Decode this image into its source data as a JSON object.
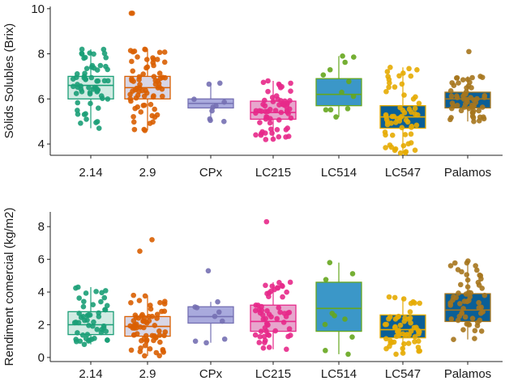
{
  "chart_data": [
    {
      "type": "box",
      "ylabel": "Sòlids Solubles (Brix)",
      "xlabel": "",
      "ylim": [
        3.5,
        10.1
      ],
      "yticks": [
        4,
        6,
        8,
        10
      ],
      "categories": [
        "2.14",
        "2.9",
        "CPx",
        "LC215",
        "LC514",
        "LC547",
        "Palamos"
      ],
      "boxes": [
        {
          "q1": 6.0,
          "median": 6.6,
          "q3": 7.0,
          "whisker_low": 4.7,
          "whisker_high": 8.2,
          "fill": "#d1ebe3",
          "stroke": "#1b9e77",
          "points_color": "#1b9e77",
          "n": 60
        },
        {
          "q1": 6.0,
          "median": 6.5,
          "q3": 7.0,
          "whisker_low": 4.6,
          "whisker_high": 8.2,
          "outliers": [
            9.8,
            9.8
          ],
          "fill": "#d8d6e6",
          "stroke": "#d95f02",
          "points_color": "#d95f02",
          "n": 70
        },
        {
          "q1": 5.6,
          "median": 5.8,
          "q3": 6.0,
          "whisker_low": 5.0,
          "whisker_high": 6.7,
          "fill": "#a9aadd",
          "stroke": "#7570b3",
          "points_color": "#7570b3",
          "n": 8
        },
        {
          "q1": 5.1,
          "median": 5.4,
          "q3": 5.9,
          "whisker_low": 4.2,
          "whisker_high": 6.8,
          "fill": "#e7a6cd",
          "stroke": "#e7298a",
          "points_color": "#e7298a",
          "n": 60
        },
        {
          "q1": 5.7,
          "median": 6.2,
          "q3": 6.9,
          "whisker_low": 5.2,
          "whisker_high": 7.9,
          "fill": "#3b97c8",
          "stroke": "#66a61e",
          "points_color": "#66a61e",
          "n": 10
        },
        {
          "q1": 4.7,
          "median": 5.2,
          "q3": 5.7,
          "whisker_low": 3.6,
          "whisker_high": 7.4,
          "fill": "#0a5f97",
          "stroke": "#e6ab02",
          "points_color": "#e6ab02",
          "n": 60
        },
        {
          "q1": 5.6,
          "median": 6.0,
          "q3": 6.3,
          "whisker_low": 5.0,
          "whisker_high": 7.0,
          "outliers": [
            8.1
          ],
          "fill": "#0a5f97",
          "stroke": "#a6761d",
          "points_color": "#a6761d",
          "n": 55
        }
      ]
    },
    {
      "type": "box",
      "ylabel": "Rendiment comercial (kg/m2)",
      "xlabel": "",
      "ylim": [
        -0.25,
        8.9
      ],
      "yticks": [
        0,
        2,
        4,
        6,
        8
      ],
      "categories": [
        "2.14",
        "2.9",
        "CPx",
        "LC215",
        "LC514",
        "LC547",
        "Palamos"
      ],
      "boxes": [
        {
          "q1": 1.4,
          "median": 2.0,
          "q3": 2.8,
          "whisker_low": 0.8,
          "whisker_high": 4.3,
          "fill": "#d1ebe3",
          "stroke": "#1b9e77",
          "points_color": "#1b9e77",
          "n": 50
        },
        {
          "q1": 1.3,
          "median": 1.9,
          "q3": 2.5,
          "whisker_low": 0.1,
          "whisker_high": 3.8,
          "outliers": [
            6.5,
            7.2
          ],
          "fill": "#d8d6e6",
          "stroke": "#d95f02",
          "points_color": "#d95f02",
          "n": 65
        },
        {
          "q1": 2.1,
          "median": 2.5,
          "q3": 3.1,
          "whisker_low": 0.9,
          "whisker_high": 3.4,
          "outliers": [
            5.3
          ],
          "fill": "#a9aadd",
          "stroke": "#7570b3",
          "points_color": "#7570b3",
          "n": 7
        },
        {
          "q1": 1.6,
          "median": 2.2,
          "q3": 3.2,
          "whisker_low": 0.5,
          "whisker_high": 4.6,
          "outliers": [
            8.3
          ],
          "fill": "#e7a6cd",
          "stroke": "#e7298a",
          "points_color": "#e7298a",
          "n": 55
        },
        {
          "q1": 1.6,
          "median": 3.0,
          "q3": 4.6,
          "whisker_low": 0.2,
          "whisker_high": 5.8,
          "fill": "#3b97c8",
          "stroke": "#66a61e",
          "points_color": "#66a61e",
          "n": 8
        },
        {
          "q1": 1.2,
          "median": 1.7,
          "q3": 2.6,
          "whisker_low": 0.2,
          "whisker_high": 3.7,
          "fill": "#0a5f97",
          "stroke": "#e6ab02",
          "points_color": "#e6ab02",
          "n": 55
        },
        {
          "q1": 2.2,
          "median": 2.9,
          "q3": 3.9,
          "whisker_low": 1.1,
          "whisker_high": 5.9,
          "fill": "#0a5f97",
          "stroke": "#a6761d",
          "points_color": "#a6761d",
          "n": 55
        }
      ]
    }
  ]
}
